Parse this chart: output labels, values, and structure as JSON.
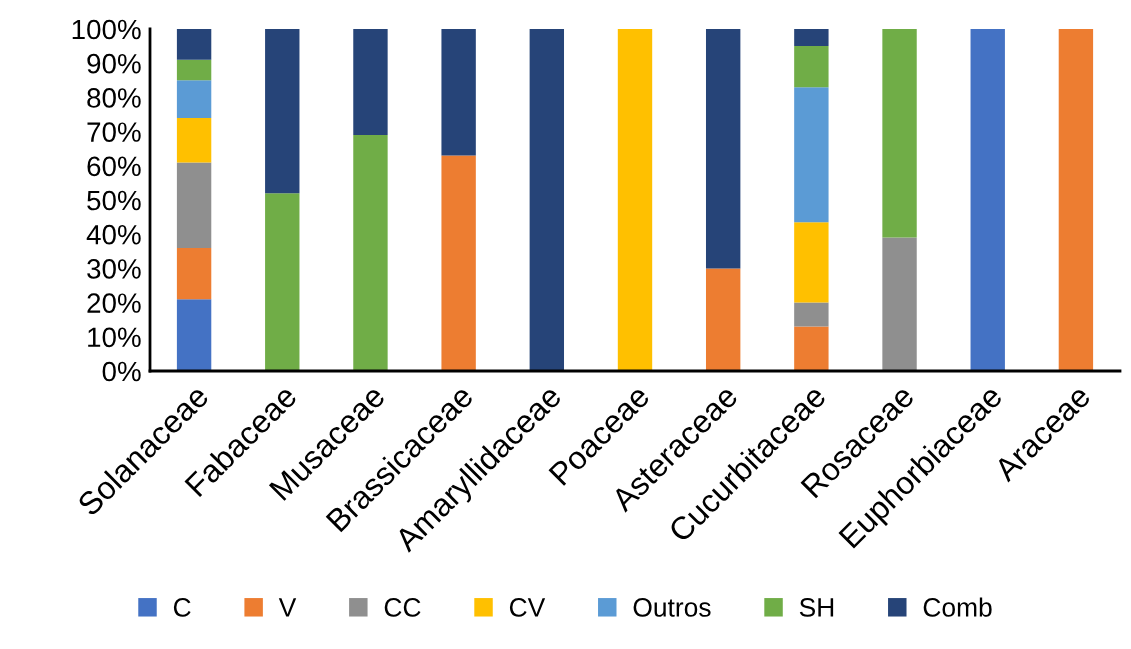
{
  "chart_data": {
    "type": "bar",
    "stacked": true,
    "categories": [
      "Solanaceae",
      "Fabaceae",
      "Musaceae",
      "Brassicaceae",
      "Amaryllidaceae",
      "Poaceae",
      "Asteraceae",
      "Cucurbitaceae",
      "Rosaceae",
      "Euphorbiaceae",
      "Araceae"
    ],
    "series": [
      {
        "name": "C",
        "color": "#4472c4",
        "values": [
          21,
          null,
          null,
          null,
          null,
          null,
          null,
          null,
          null,
          100,
          null
        ]
      },
      {
        "name": "V",
        "color": "#ed7d31",
        "values": [
          15,
          null,
          null,
          63,
          null,
          null,
          30,
          13,
          null,
          null,
          100
        ]
      },
      {
        "name": "CC",
        "color": "#8f8f8f",
        "values": [
          25,
          null,
          null,
          null,
          null,
          null,
          null,
          7,
          39,
          null,
          null
        ]
      },
      {
        "name": "CV",
        "color": "#ffc000",
        "values": [
          13,
          null,
          null,
          null,
          null,
          100,
          null,
          23.5,
          null,
          null,
          null
        ]
      },
      {
        "name": "Outros",
        "color": "#5b9bd5",
        "values": [
          11,
          null,
          null,
          null,
          null,
          null,
          null,
          39.5,
          null,
          null,
          null
        ]
      },
      {
        "name": "SH",
        "color": "#70ad47",
        "values": [
          6,
          52,
          69,
          null,
          null,
          null,
          null,
          12,
          61,
          null,
          null
        ]
      },
      {
        "name": "Comb",
        "color": "#264478",
        "values": [
          9,
          48,
          31,
          37,
          100,
          null,
          70,
          5,
          null,
          null,
          null
        ]
      }
    ],
    "ylim": [
      0,
      100
    ],
    "yticks": [
      {
        "value": 0,
        "label": "0%"
      },
      {
        "value": 10,
        "label": "10%"
      },
      {
        "value": 20,
        "label": "20%"
      },
      {
        "value": 30,
        "label": "30%"
      },
      {
        "value": 40,
        "label": "40%"
      },
      {
        "value": 50,
        "label": "50%"
      },
      {
        "value": 60,
        "label": "60%"
      },
      {
        "value": 70,
        "label": "70%"
      },
      {
        "value": 80,
        "label": "80%"
      },
      {
        "value": 90,
        "label": "90%"
      },
      {
        "value": 100,
        "label": "100%"
      }
    ],
    "grid": false,
    "legend": "bottom"
  }
}
